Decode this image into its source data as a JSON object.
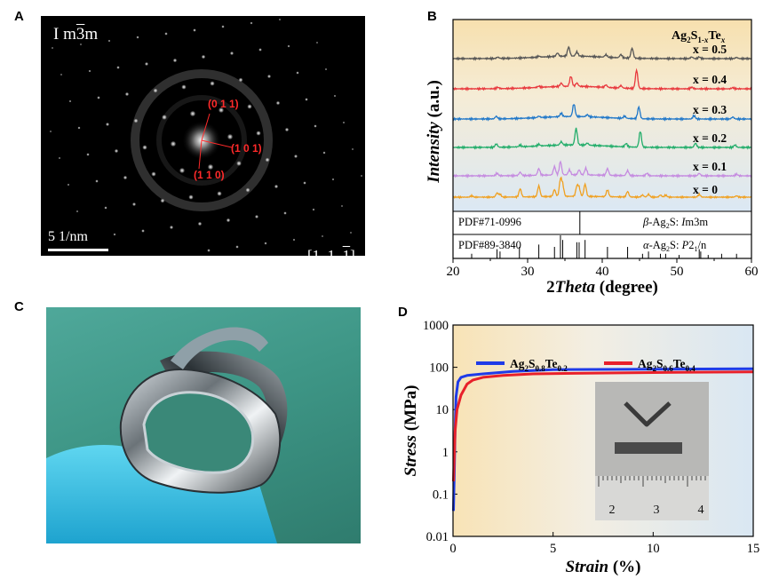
{
  "panels": {
    "a": {
      "letter": "A",
      "space_group_prefix": "I m",
      "space_group_bar": "3",
      "space_group_suffix": "m",
      "scale_bar": "5 1/nm",
      "zone_axis_left": "[1  1  ",
      "zone_axis_bar": "1",
      "zone_axis_right": "]",
      "spots": [
        "(0  1  1)",
        "(1  0  1)",
        "(1  1  0)"
      ]
    },
    "b": {
      "letter": "B"
    },
    "c": {
      "letter": "C"
    },
    "d": {
      "letter": "D"
    }
  },
  "chart_data": [
    {
      "type": "line",
      "panel": "B",
      "title": "",
      "xlabel": "2Theta (degree)",
      "ylabel": "Intensity (a.u.)",
      "legend_title": "Ag2S1-xTex",
      "xlim": [
        20,
        60
      ],
      "xticks": [
        20,
        30,
        40,
        50,
        60
      ],
      "series": [
        {
          "name": "x = 0.5",
          "color": "#555555",
          "peaks": [
            [
              26,
              0.8
            ],
            [
              31.5,
              0.6
            ],
            [
              34,
              2
            ],
            [
              35.5,
              5.5
            ],
            [
              36.6,
              2.5
            ],
            [
              40.5,
              1.5
            ],
            [
              42.5,
              2
            ],
            [
              44,
              6
            ],
            [
              52,
              1
            ],
            [
              53,
              1
            ],
            [
              58,
              0.7
            ]
          ]
        },
        {
          "name": "x = 0.4",
          "color": "#e8383d",
          "peaks": [
            [
              26,
              0.8
            ],
            [
              31.5,
              0.7
            ],
            [
              34.5,
              2
            ],
            [
              35.8,
              6
            ],
            [
              36.6,
              2
            ],
            [
              40.5,
              1.5
            ],
            [
              42.5,
              1.5
            ],
            [
              44.6,
              11
            ],
            [
              52,
              1
            ],
            [
              57.5,
              0.7
            ]
          ]
        },
        {
          "name": "x = 0.3",
          "color": "#1f77c9",
          "peaks": [
            [
              25.8,
              1.5
            ],
            [
              31.5,
              0.8
            ],
            [
              34.5,
              2
            ],
            [
              36.2,
              7.5
            ],
            [
              38,
              1.2
            ],
            [
              43,
              1.3
            ],
            [
              44.9,
              7
            ],
            [
              52.3,
              2
            ],
            [
              57.5,
              1.2
            ]
          ]
        },
        {
          "name": "x = 0.2",
          "color": "#22ad6a",
          "peaks": [
            [
              25.8,
              2
            ],
            [
              29,
              1
            ],
            [
              31.5,
              1
            ],
            [
              34.5,
              2
            ],
            [
              36.5,
              10
            ],
            [
              38,
              1.2
            ],
            [
              43.2,
              2
            ],
            [
              45.1,
              9.5
            ],
            [
              52.5,
              2.5
            ],
            [
              57.8,
              1.5
            ]
          ]
        },
        {
          "name": "x = 0.1",
          "color": "#c58be0",
          "peaks": [
            [
              25.9,
              1.5
            ],
            [
              29,
              2
            ],
            [
              31.5,
              4
            ],
            [
              33.6,
              5
            ],
            [
              34.4,
              8
            ],
            [
              35.6,
              3
            ],
            [
              36.9,
              3
            ],
            [
              37.8,
              4
            ],
            [
              40.7,
              4
            ],
            [
              43.4,
              3
            ],
            [
              46,
              1.5
            ],
            [
              53,
              1.5
            ],
            [
              58,
              1
            ]
          ]
        },
        {
          "name": "x = 0",
          "color": "#f0a020",
          "peaks": [
            [
              22.5,
              1
            ],
            [
              25.9,
              3
            ],
            [
              26.3,
              2
            ],
            [
              29,
              6
            ],
            [
              31.5,
              8
            ],
            [
              33.6,
              5
            ],
            [
              34.4,
              12
            ],
            [
              34.7,
              8
            ],
            [
              36.6,
              7
            ],
            [
              36.9,
              6
            ],
            [
              37.7,
              9
            ],
            [
              40.7,
              5
            ],
            [
              43.4,
              4
            ],
            [
              45.4,
              1.5
            ],
            [
              46.2,
              2
            ],
            [
              47.8,
              1.5
            ],
            [
              48.5,
              1.5
            ],
            [
              53,
              2
            ],
            [
              58,
              1
            ]
          ]
        }
      ],
      "references": [
        {
          "label": "PDF#71-0996",
          "phase": "β-Ag2S: Im3m",
          "lines": [
            [
              37,
              1
            ]
          ]
        },
        {
          "label": "PDF#89-3840",
          "phase": "α-Ag2S: P21/n",
          "lines": [
            [
              22.5,
              0.2
            ],
            [
              25.9,
              0.4
            ],
            [
              26.3,
              0.3
            ],
            [
              28.9,
              0.5
            ],
            [
              31.5,
              0.6
            ],
            [
              33.6,
              0.5
            ],
            [
              34.4,
              1
            ],
            [
              34.7,
              0.8
            ],
            [
              36.6,
              0.7
            ],
            [
              36.9,
              0.7
            ],
            [
              37.7,
              0.8
            ],
            [
              40.7,
              0.5
            ],
            [
              43.4,
              0.5
            ],
            [
              45.4,
              0.2
            ],
            [
              46.2,
              0.3
            ],
            [
              47.8,
              0.2
            ],
            [
              48.5,
              0.2
            ],
            [
              50.3,
              0.15
            ],
            [
              53,
              0.4
            ],
            [
              53.2,
              0.3
            ],
            [
              54.2,
              0.15
            ],
            [
              56,
              0.2
            ],
            [
              58,
              0.2
            ]
          ]
        }
      ]
    },
    {
      "type": "line",
      "panel": "D",
      "title": "",
      "xlabel": "Strain (%)",
      "ylabel": "Stress (MPa)",
      "xlim": [
        0,
        15
      ],
      "ylim": [
        0.01,
        1000
      ],
      "yscale": "log",
      "xticks": [
        0,
        5,
        10,
        15
      ],
      "yticks": [
        "0.01",
        "0.1",
        "1",
        "10",
        "100",
        "1000"
      ],
      "legend_position": "top",
      "series": [
        {
          "name": "Ag2S0.8Te0.2",
          "color": "#1f3be8",
          "points": [
            [
              0.02,
              0.04
            ],
            [
              0.06,
              0.3
            ],
            [
              0.1,
              3
            ],
            [
              0.15,
              20
            ],
            [
              0.25,
              45
            ],
            [
              0.4,
              58
            ],
            [
              0.7,
              64
            ],
            [
              1.5,
              70
            ],
            [
              3,
              80
            ],
            [
              5,
              88
            ],
            [
              10,
              90
            ],
            [
              15,
              92
            ]
          ]
        },
        {
          "name": "Ag2S0.6Te0.4",
          "color": "#e8202a",
          "points": [
            [
              0.02,
              0.2
            ],
            [
              0.1,
              3
            ],
            [
              0.2,
              10
            ],
            [
              0.4,
              22
            ],
            [
              0.7,
              40
            ],
            [
              1,
              50
            ],
            [
              1.5,
              58
            ],
            [
              2.5,
              64
            ],
            [
              4,
              70
            ],
            [
              6,
              72
            ],
            [
              10,
              75
            ],
            [
              15,
              78
            ]
          ]
        }
      ],
      "inset_scale": [
        "2",
        "3",
        "4"
      ]
    }
  ]
}
